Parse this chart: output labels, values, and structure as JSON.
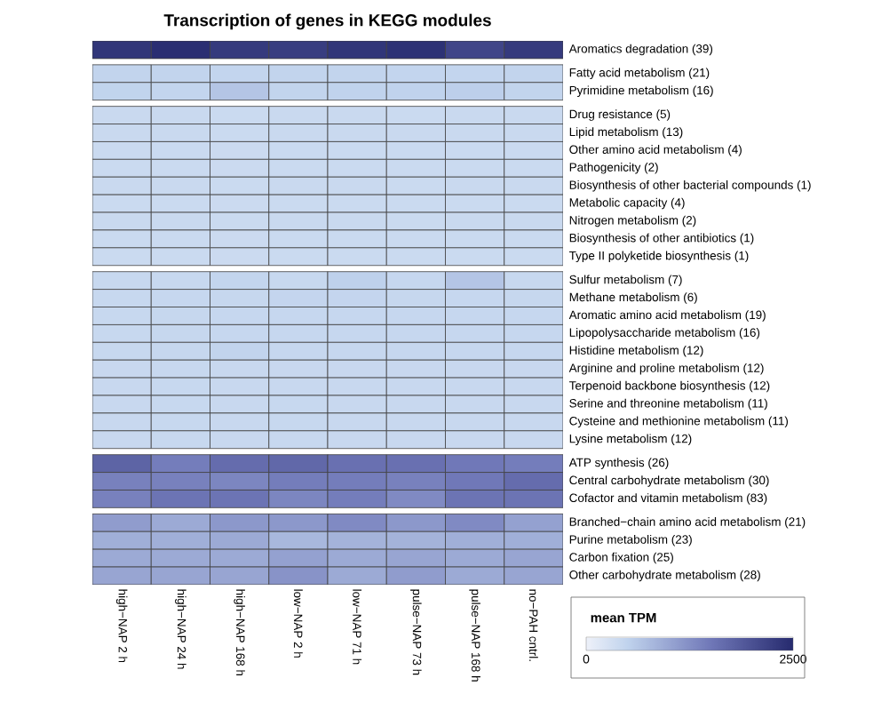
{
  "chart_data": {
    "type": "heatmap",
    "title": "Transcription of genes in KEGG modules",
    "categories": [
      "high−NAP 2 h",
      "high−NAP 24 h",
      "high−NAP 168 h",
      "low−NAP 2 h",
      "low−NAP 71 h",
      "pulse−NAP 73 h",
      "pulse−NAP 168 h",
      "no−PAH cntrl."
    ],
    "y_categories": [
      "Aromatics degradation (39)",
      "Fatty acid metabolism (21)",
      "Pyrimidine metabolism (16)",
      "Drug resistance (5)",
      "Lipid metabolism (13)",
      "Other amino acid metabolism (4)",
      "Pathogenicity (2)",
      "Biosynthesis of other bacterial compounds (1)",
      "Metabolic capacity (4)",
      "Nitrogen metabolism (2)",
      "Biosynthesis of other antibiotics (1)",
      "Type II polyketide biosynthesis (1)",
      "Sulfur metabolism (7)",
      "Methane metabolism (6)",
      "Aromatic amino acid metabolism (19)",
      "Lipopolysaccharide metabolism (16)",
      "Histidine metabolism (12)",
      "Arginine and proline metabolism (12)",
      "Terpenoid backbone biosynthesis (12)",
      "Serine and threonine metabolism (11)",
      "Cysteine and methionine metabolism (11)",
      "Lysine metabolism (12)",
      "ATP synthesis (26)",
      "Central carbohydrate metabolism (30)",
      "Cofactor and vitamin metabolism (83)",
      "Branched−chain amino acid metabolism (21)",
      "Purine metabolism (23)",
      "Carbon fixation (25)",
      "Other carbohydrate metabolism (28)"
    ],
    "cells": [
      [
        2350,
        2450,
        2300,
        2250,
        2350,
        2400,
        2150,
        2300
      ],
      [
        480,
        480,
        470,
        480,
        480,
        470,
        470,
        480
      ],
      [
        490,
        470,
        650,
        480,
        500,
        500,
        540,
        480
      ],
      [
        400,
        400,
        390,
        400,
        400,
        390,
        400,
        400
      ],
      [
        400,
        400,
        390,
        400,
        400,
        400,
        400,
        400
      ],
      [
        390,
        390,
        380,
        390,
        390,
        390,
        390,
        390
      ],
      [
        390,
        390,
        380,
        390,
        390,
        390,
        390,
        390
      ],
      [
        400,
        400,
        390,
        400,
        400,
        390,
        400,
        400
      ],
      [
        390,
        390,
        380,
        390,
        390,
        390,
        390,
        390
      ],
      [
        400,
        400,
        390,
        400,
        400,
        390,
        400,
        400
      ],
      [
        390,
        390,
        380,
        390,
        390,
        390,
        390,
        390
      ],
      [
        390,
        390,
        380,
        390,
        390,
        390,
        390,
        390
      ],
      [
        420,
        420,
        470,
        420,
        520,
        430,
        650,
        420
      ],
      [
        420,
        430,
        440,
        460,
        460,
        440,
        430,
        440
      ],
      [
        420,
        440,
        430,
        430,
        430,
        430,
        430,
        430
      ],
      [
        420,
        440,
        430,
        430,
        430,
        430,
        430,
        430
      ],
      [
        420,
        440,
        480,
        430,
        430,
        430,
        430,
        430
      ],
      [
        410,
        420,
        410,
        410,
        410,
        410,
        410,
        410
      ],
      [
        410,
        420,
        410,
        410,
        410,
        410,
        410,
        410
      ],
      [
        410,
        420,
        410,
        420,
        410,
        410,
        410,
        410
      ],
      [
        410,
        420,
        410,
        420,
        410,
        410,
        410,
        410
      ],
      [
        410,
        420,
        410,
        420,
        410,
        410,
        410,
        410
      ],
      [
        1750,
        1450,
        1650,
        1700,
        1600,
        1600,
        1500,
        1450
      ],
      [
        1400,
        1400,
        1350,
        1450,
        1450,
        1400,
        1500,
        1650
      ],
      [
        1400,
        1550,
        1550,
        1350,
        1450,
        1300,
        1550,
        1550
      ],
      [
        1100,
        950,
        1150,
        1150,
        1300,
        1150,
        1300,
        1050
      ],
      [
        900,
        900,
        950,
        800,
        850,
        850,
        900,
        900
      ],
      [
        950,
        950,
        950,
        1050,
        950,
        1000,
        950,
        1000
      ],
      [
        1000,
        1000,
        1000,
        1200,
        950,
        1100,
        950,
        1000
      ]
    ],
    "clabel": "mean TPM",
    "clim": [
      0,
      2500
    ],
    "cticks": [
      0,
      2500
    ]
  }
}
